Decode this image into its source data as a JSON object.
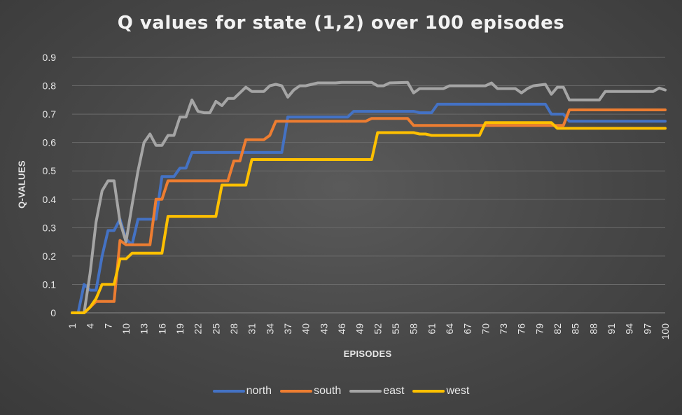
{
  "chart_data": {
    "type": "line",
    "title": "Q values for state (1,2) over 100 episodes",
    "xlabel": "EPISODES",
    "ylabel": "Q-VALUES",
    "ylim": [
      0,
      0.9
    ],
    "yticks": [
      "0",
      "0.1",
      "0.2",
      "0.3",
      "0.4",
      "0.5",
      "0.6",
      "0.7",
      "0.8",
      "0.9"
    ],
    "xticks": [
      1,
      4,
      7,
      10,
      13,
      16,
      19,
      22,
      25,
      28,
      31,
      34,
      37,
      40,
      43,
      46,
      49,
      52,
      55,
      58,
      61,
      64,
      67,
      70,
      73,
      76,
      79,
      82,
      85,
      88,
      91,
      94,
      97,
      100
    ],
    "grid": true,
    "legend_position": "bottom",
    "series": [
      {
        "name": "north",
        "color": "#4472C4",
        "points": [
          [
            1,
            0
          ],
          [
            2,
            0
          ],
          [
            3,
            0.1
          ],
          [
            4,
            0.08
          ],
          [
            5,
            0.08
          ],
          [
            6,
            0.2
          ],
          [
            7,
            0.29
          ],
          [
            8,
            0.29
          ],
          [
            9,
            0.33
          ],
          [
            10,
            0.26
          ],
          [
            11,
            0.24
          ],
          [
            12,
            0.33
          ],
          [
            13,
            0.33
          ],
          [
            14,
            0.33
          ],
          [
            15,
            0.33
          ],
          [
            16,
            0.48
          ],
          [
            17,
            0.48
          ],
          [
            18,
            0.48
          ],
          [
            19,
            0.51
          ],
          [
            20,
            0.51
          ],
          [
            21,
            0.565
          ],
          [
            36,
            0.565
          ],
          [
            37,
            0.69
          ],
          [
            47,
            0.69
          ],
          [
            48,
            0.71
          ],
          [
            58,
            0.71
          ],
          [
            59,
            0.705
          ],
          [
            61,
            0.705
          ],
          [
            62,
            0.735
          ],
          [
            80,
            0.735
          ],
          [
            81,
            0.7
          ],
          [
            83,
            0.7
          ],
          [
            84,
            0.675
          ],
          [
            100,
            0.675
          ]
        ]
      },
      {
        "name": "south",
        "color": "#ED7D31",
        "points": [
          [
            1,
            0
          ],
          [
            3,
            0
          ],
          [
            4,
            0.02
          ],
          [
            5,
            0.04
          ],
          [
            8,
            0.04
          ],
          [
            9,
            0.255
          ],
          [
            10,
            0.24
          ],
          [
            14,
            0.24
          ],
          [
            15,
            0.4
          ],
          [
            16,
            0.4
          ],
          [
            17,
            0.465
          ],
          [
            27,
            0.465
          ],
          [
            28,
            0.535
          ],
          [
            29,
            0.535
          ],
          [
            30,
            0.61
          ],
          [
            33,
            0.61
          ],
          [
            34,
            0.625
          ],
          [
            35,
            0.675
          ],
          [
            50,
            0.675
          ],
          [
            51,
            0.685
          ],
          [
            57,
            0.685
          ],
          [
            58,
            0.66
          ],
          [
            83,
            0.66
          ],
          [
            84,
            0.715
          ],
          [
            100,
            0.715
          ]
        ]
      },
      {
        "name": "east",
        "color": "#A5A5A5",
        "points": [
          [
            1,
            0
          ],
          [
            3,
            0
          ],
          [
            4,
            0.14
          ],
          [
            5,
            0.32
          ],
          [
            6,
            0.43
          ],
          [
            7,
            0.465
          ],
          [
            8,
            0.465
          ],
          [
            9,
            0.32
          ],
          [
            10,
            0.25
          ],
          [
            11,
            0.38
          ],
          [
            12,
            0.5
          ],
          [
            13,
            0.6
          ],
          [
            14,
            0.63
          ],
          [
            15,
            0.59
          ],
          [
            16,
            0.59
          ],
          [
            17,
            0.625
          ],
          [
            18,
            0.625
          ],
          [
            19,
            0.69
          ],
          [
            20,
            0.69
          ],
          [
            21,
            0.75
          ],
          [
            22,
            0.71
          ],
          [
            23,
            0.705
          ],
          [
            24,
            0.705
          ],
          [
            25,
            0.745
          ],
          [
            26,
            0.73
          ],
          [
            27,
            0.755
          ],
          [
            28,
            0.755
          ],
          [
            29,
            0.775
          ],
          [
            30,
            0.795
          ],
          [
            31,
            0.78
          ],
          [
            33,
            0.78
          ],
          [
            34,
            0.8
          ],
          [
            35,
            0.805
          ],
          [
            36,
            0.8
          ],
          [
            37,
            0.76
          ],
          [
            38,
            0.785
          ],
          [
            39,
            0.8
          ],
          [
            40,
            0.8
          ],
          [
            41,
            0.805
          ],
          [
            42,
            0.81
          ],
          [
            45,
            0.81
          ],
          [
            46,
            0.812
          ],
          [
            51,
            0.812
          ],
          [
            52,
            0.8
          ],
          [
            53,
            0.8
          ],
          [
            54,
            0.81
          ],
          [
            57,
            0.812
          ],
          [
            58,
            0.775
          ],
          [
            59,
            0.79
          ],
          [
            63,
            0.79
          ],
          [
            64,
            0.8
          ],
          [
            70,
            0.8
          ],
          [
            71,
            0.81
          ],
          [
            72,
            0.79
          ],
          [
            75,
            0.79
          ],
          [
            76,
            0.775
          ],
          [
            77,
            0.79
          ],
          [
            78,
            0.8
          ],
          [
            80,
            0.805
          ],
          [
            81,
            0.77
          ],
          [
            82,
            0.795
          ],
          [
            83,
            0.795
          ],
          [
            84,
            0.75
          ],
          [
            89,
            0.75
          ],
          [
            90,
            0.78
          ],
          [
            98,
            0.78
          ],
          [
            99,
            0.792
          ],
          [
            100,
            0.785
          ]
        ]
      },
      {
        "name": "west",
        "color": "#FFC000",
        "points": [
          [
            1,
            0
          ],
          [
            3,
            0
          ],
          [
            4,
            0.02
          ],
          [
            5,
            0.05
          ],
          [
            6,
            0.1
          ],
          [
            8,
            0.1
          ],
          [
            9,
            0.19
          ],
          [
            10,
            0.19
          ],
          [
            11,
            0.21
          ],
          [
            16,
            0.21
          ],
          [
            17,
            0.34
          ],
          [
            25,
            0.34
          ],
          [
            26,
            0.45
          ],
          [
            30,
            0.45
          ],
          [
            31,
            0.54
          ],
          [
            51,
            0.54
          ],
          [
            52,
            0.635
          ],
          [
            58,
            0.635
          ],
          [
            59,
            0.63
          ],
          [
            60,
            0.63
          ],
          [
            61,
            0.625
          ],
          [
            69,
            0.625
          ],
          [
            70,
            0.67
          ],
          [
            81,
            0.67
          ],
          [
            82,
            0.65
          ],
          [
            100,
            0.65
          ]
        ]
      }
    ]
  },
  "colors": {
    "background": "#474747",
    "gridline": "#6a6a6a",
    "text": "#e8e8e8"
  }
}
